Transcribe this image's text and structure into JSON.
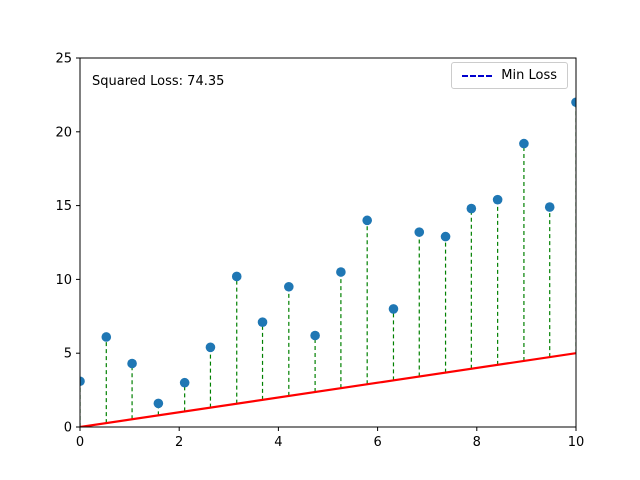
{
  "chart_data": {
    "type": "scatter",
    "title": "",
    "xlabel": "",
    "ylabel": "",
    "annotation": "Squared Loss: 74.35",
    "legend": {
      "label": "Min Loss",
      "line_color": "#0000cd",
      "line_style": "dashed",
      "position": "upper right"
    },
    "xlim": [
      0,
      10
    ],
    "ylim": [
      0,
      25
    ],
    "xticks": [
      0,
      2,
      4,
      6,
      8,
      10
    ],
    "yticks": [
      0,
      5,
      10,
      15,
      20,
      25
    ],
    "grid": false,
    "points": {
      "color": "#1f77b4",
      "x": [
        0,
        0.53,
        1.05,
        1.58,
        2.11,
        2.63,
        3.16,
        3.68,
        4.21,
        4.74,
        5.26,
        5.79,
        6.32,
        6.84,
        7.37,
        7.89,
        8.42,
        8.95,
        9.47,
        10
      ],
      "y": [
        3.1,
        6.1,
        4.3,
        1.6,
        3.0,
        5.4,
        10.2,
        7.1,
        9.5,
        6.2,
        10.5,
        14.0,
        8.0,
        13.2,
        12.9,
        14.8,
        15.4,
        19.2,
        14.9,
        22.0
      ]
    },
    "fit_line": {
      "x": [
        0,
        10
      ],
      "y": [
        0,
        5
      ],
      "color": "#ff0000",
      "width": 2.2
    },
    "residuals": {
      "color": "#008000",
      "style": "dashed"
    }
  }
}
